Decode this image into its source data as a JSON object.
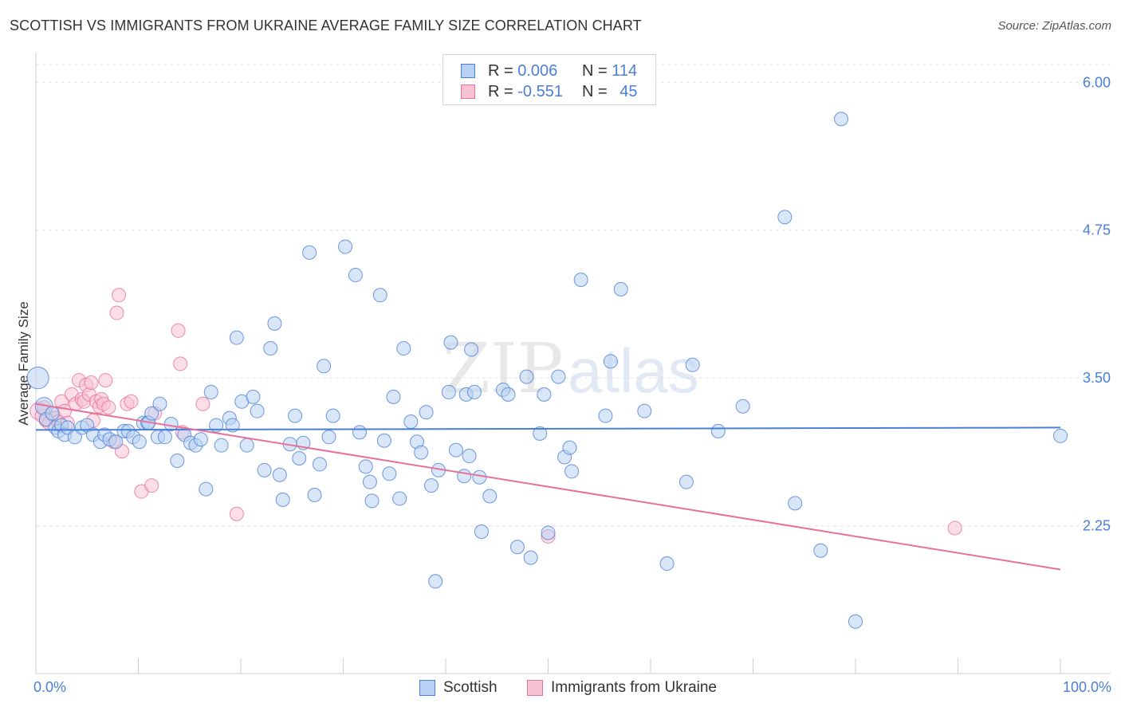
{
  "title": "SCOTTISH VS IMMIGRANTS FROM UKRAINE AVERAGE FAMILY SIZE CORRELATION CHART",
  "source": "Source: ZipAtlas.com",
  "watermark": {
    "zip": "ZIP",
    "atlas": "atlas"
  },
  "colors": {
    "scottish": "#4a7fd6",
    "ukraine": "#e8709a",
    "scottish_fill": "#b9d1f3",
    "ukraine_fill": "#f7c2d3",
    "axis_text": "#4a7fd6"
  },
  "legend": {
    "rows": [
      {
        "r_label": "R = ",
        "r_value": "0.006",
        "n_label": "N = ",
        "n_value": "114"
      },
      {
        "r_label": "R = ",
        "r_value": "-0.551",
        "n_label": "N = ",
        "n_value": "45"
      }
    ]
  },
  "bottom_legend": {
    "scottish": "Scottish",
    "ukraine": "Immigrants from Ukraine"
  },
  "chart_data": {
    "type": "scatter",
    "ylabel": "Average Family Size",
    "xlabel": "",
    "x_tick_labels": {
      "min": "0.0%",
      "max": "100.0%"
    },
    "xlim": [
      0,
      100
    ],
    "ylim": [
      1.0,
      6.15
    ],
    "y_ticks": [
      6.0,
      4.75,
      3.5,
      2.25
    ],
    "y_tick_labels": [
      "6.00",
      "4.75",
      "3.50",
      "2.25"
    ],
    "grid": true,
    "legend_position": "top-center",
    "series": [
      {
        "name": "Scottish",
        "color": "#4a7fd6",
        "trend": {
          "x0": 0,
          "y0": 3.06,
          "x1": 100,
          "y1": 3.08
        },
        "points": [
          [
            0.2,
            3.5,
            1.6
          ],
          [
            0.8,
            3.26,
            1.3
          ],
          [
            1.0,
            3.15,
            1.0
          ],
          [
            1.6,
            3.2,
            1.0
          ],
          [
            1.9,
            3.08,
            1.0
          ],
          [
            2.2,
            3.05,
            1.0
          ],
          [
            2.5,
            3.1,
            1.0
          ],
          [
            2.8,
            3.02,
            1.0
          ],
          [
            3.1,
            3.08,
            1.0
          ],
          [
            3.8,
            3.0,
            1.0
          ],
          [
            4.5,
            3.08,
            1.0
          ],
          [
            5.0,
            3.1,
            1.0
          ],
          [
            5.6,
            3.02,
            1.0
          ],
          [
            6.3,
            2.96,
            1.0
          ],
          [
            6.7,
            3.02,
            1.0
          ],
          [
            7.2,
            2.98,
            1.0
          ],
          [
            7.8,
            2.96,
            1.0
          ],
          [
            8.6,
            3.05,
            1.0
          ],
          [
            9.0,
            3.05,
            1.0
          ],
          [
            9.5,
            3.0,
            1.0
          ],
          [
            10.1,
            2.96,
            1.0
          ],
          [
            10.5,
            3.12,
            1.0
          ],
          [
            10.9,
            3.12,
            1.0
          ],
          [
            11.0,
            3.12,
            1.0
          ],
          [
            11.3,
            3.2,
            1.0
          ],
          [
            11.9,
            3.0,
            1.0
          ],
          [
            12.1,
            3.28,
            1.0
          ],
          [
            12.6,
            3.0,
            1.0
          ],
          [
            13.2,
            3.11,
            1.0
          ],
          [
            13.8,
            2.8,
            1.0
          ],
          [
            14.5,
            3.02,
            1.0
          ],
          [
            15.1,
            2.95,
            1.0
          ],
          [
            15.6,
            2.93,
            1.0
          ],
          [
            16.1,
            2.98,
            1.0
          ],
          [
            16.6,
            2.56,
            1.0
          ],
          [
            17.1,
            3.38,
            1.0
          ],
          [
            17.6,
            3.1,
            1.0
          ],
          [
            18.1,
            2.93,
            1.0
          ],
          [
            18.9,
            3.16,
            1.0
          ],
          [
            19.2,
            3.1,
            1.0
          ],
          [
            19.6,
            3.84,
            1.0
          ],
          [
            20.1,
            3.3,
            1.0
          ],
          [
            20.6,
            2.93,
            1.0
          ],
          [
            21.2,
            3.34,
            1.0
          ],
          [
            21.6,
            3.22,
            1.0
          ],
          [
            22.3,
            2.72,
            1.0
          ],
          [
            22.9,
            3.75,
            1.0
          ],
          [
            23.3,
            3.96,
            1.0
          ],
          [
            23.8,
            2.68,
            1.0
          ],
          [
            24.1,
            2.47,
            1.0
          ],
          [
            24.8,
            2.94,
            1.0
          ],
          [
            25.3,
            3.18,
            1.0
          ],
          [
            25.7,
            2.82,
            1.0
          ],
          [
            26.1,
            2.95,
            1.0
          ],
          [
            26.7,
            4.56,
            1.0
          ],
          [
            27.2,
            2.51,
            1.0
          ],
          [
            27.7,
            2.77,
            1.0
          ],
          [
            28.1,
            3.6,
            1.0
          ],
          [
            28.6,
            3.0,
            1.0
          ],
          [
            29.0,
            3.18,
            1.0
          ],
          [
            30.2,
            4.61,
            1.0
          ],
          [
            31.2,
            4.37,
            1.0
          ],
          [
            31.6,
            3.04,
            1.0
          ],
          [
            32.2,
            2.75,
            1.0
          ],
          [
            32.6,
            2.62,
            1.0
          ],
          [
            32.8,
            2.46,
            1.0
          ],
          [
            33.6,
            4.2,
            1.0
          ],
          [
            34.0,
            2.97,
            1.0
          ],
          [
            34.5,
            2.69,
            1.0
          ],
          [
            34.9,
            3.34,
            1.0
          ],
          [
            35.5,
            2.48,
            1.0
          ],
          [
            35.9,
            3.75,
            1.0
          ],
          [
            36.6,
            3.13,
            1.0
          ],
          [
            37.2,
            2.96,
            1.0
          ],
          [
            37.6,
            2.87,
            1.0
          ],
          [
            38.1,
            3.21,
            1.0
          ],
          [
            38.6,
            2.59,
            1.0
          ],
          [
            39.0,
            1.78,
            1.0
          ],
          [
            39.3,
            2.72,
            1.0
          ],
          [
            40.3,
            3.38,
            1.0
          ],
          [
            40.5,
            3.8,
            1.0
          ],
          [
            41.0,
            2.89,
            1.0
          ],
          [
            41.8,
            2.67,
            1.0
          ],
          [
            42.0,
            3.36,
            1.0
          ],
          [
            42.3,
            2.84,
            1.0
          ],
          [
            42.5,
            3.74,
            1.0
          ],
          [
            42.8,
            3.38,
            1.0
          ],
          [
            43.3,
            2.66,
            1.0
          ],
          [
            43.5,
            2.2,
            1.0
          ],
          [
            44.3,
            2.5,
            1.0
          ],
          [
            45.6,
            3.4,
            1.0
          ],
          [
            46.1,
            3.36,
            1.0
          ],
          [
            47.0,
            2.07,
            1.0
          ],
          [
            47.9,
            3.51,
            1.0
          ],
          [
            48.3,
            1.98,
            1.0
          ],
          [
            49.2,
            3.03,
            1.0
          ],
          [
            49.6,
            3.36,
            1.0
          ],
          [
            50.0,
            2.19,
            1.0
          ],
          [
            51.0,
            3.51,
            1.0
          ],
          [
            51.6,
            2.83,
            1.0
          ],
          [
            52.1,
            2.91,
            1.0
          ],
          [
            52.3,
            2.71,
            1.0
          ],
          [
            53.2,
            4.33,
            1.0
          ],
          [
            55.6,
            3.18,
            1.0
          ],
          [
            56.1,
            3.64,
            1.0
          ],
          [
            57.1,
            4.25,
            1.0
          ],
          [
            59.4,
            3.22,
            1.0
          ],
          [
            61.6,
            1.93,
            1.0
          ],
          [
            63.5,
            2.62,
            1.0
          ],
          [
            64.1,
            3.61,
            1.0
          ],
          [
            66.6,
            3.05,
            1.0
          ],
          [
            69.0,
            3.26,
            1.0
          ],
          [
            73.1,
            4.86,
            1.0
          ],
          [
            74.1,
            2.44,
            1.0
          ],
          [
            76.6,
            2.04,
            1.0
          ],
          [
            78.6,
            5.69,
            1.0
          ],
          [
            80.0,
            1.44,
            1.0
          ],
          [
            100.0,
            3.01,
            1.0
          ]
        ]
      },
      {
        "name": "Immigrants from Ukraine",
        "color": "#e8709a",
        "trend": {
          "x0": 0,
          "y0": 3.28,
          "x1": 100,
          "y1": 1.88
        },
        "points": [
          [
            0.3,
            3.22,
            1.3
          ],
          [
            0.6,
            3.18,
            1.0
          ],
          [
            0.8,
            3.25,
            1.0
          ],
          [
            1.0,
            3.14,
            1.0
          ],
          [
            1.3,
            3.12,
            1.0
          ],
          [
            1.6,
            3.2,
            1.0
          ],
          [
            1.9,
            3.16,
            1.0
          ],
          [
            2.2,
            3.13,
            1.0
          ],
          [
            2.5,
            3.3,
            1.0
          ],
          [
            2.8,
            3.22,
            1.0
          ],
          [
            3.1,
            3.12,
            1.0
          ],
          [
            3.5,
            3.36,
            1.0
          ],
          [
            3.9,
            3.28,
            1.0
          ],
          [
            4.2,
            3.48,
            1.0
          ],
          [
            4.5,
            3.32,
            1.0
          ],
          [
            4.7,
            3.3,
            1.0
          ],
          [
            4.9,
            3.44,
            1.0
          ],
          [
            5.2,
            3.36,
            1.0
          ],
          [
            5.4,
            3.46,
            1.0
          ],
          [
            5.6,
            3.14,
            1.0
          ],
          [
            5.9,
            3.3,
            1.0
          ],
          [
            6.2,
            3.26,
            1.0
          ],
          [
            6.4,
            3.32,
            1.0
          ],
          [
            6.6,
            3.28,
            1.0
          ],
          [
            6.8,
            3.48,
            1.0
          ],
          [
            7.1,
            3.25,
            1.0
          ],
          [
            7.6,
            2.96,
            1.0
          ],
          [
            7.9,
            4.05,
            1.0
          ],
          [
            8.1,
            4.2,
            1.0
          ],
          [
            8.4,
            2.88,
            1.0
          ],
          [
            8.9,
            3.28,
            1.0
          ],
          [
            9.3,
            3.3,
            1.0
          ],
          [
            10.3,
            2.54,
            1.0
          ],
          [
            11.3,
            2.59,
            1.0
          ],
          [
            11.6,
            3.2,
            1.0
          ],
          [
            13.9,
            3.9,
            1.0
          ],
          [
            14.1,
            3.62,
            1.0
          ],
          [
            14.3,
            3.04,
            1.0
          ],
          [
            16.3,
            3.28,
            1.0
          ],
          [
            19.6,
            2.35,
            1.0
          ],
          [
            50.0,
            2.16,
            1.0
          ],
          [
            89.7,
            2.23,
            1.0
          ]
        ]
      }
    ]
  }
}
